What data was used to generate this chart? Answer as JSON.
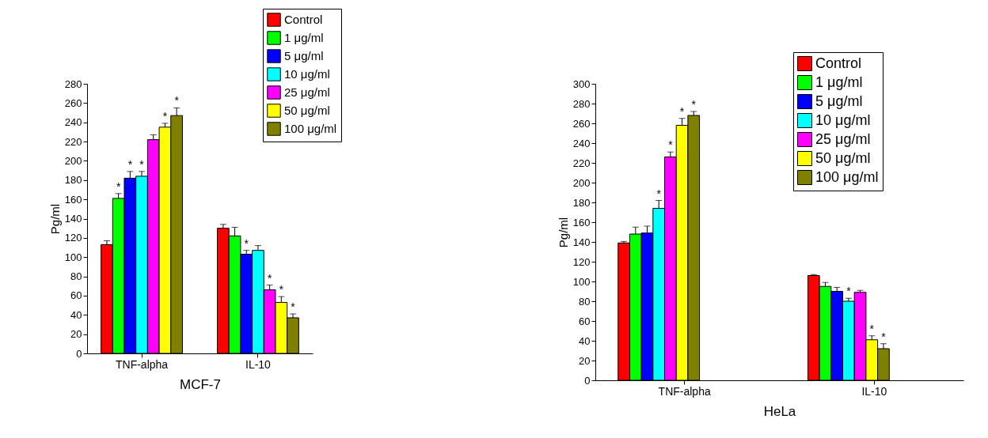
{
  "chart_data": [
    {
      "type": "bar",
      "xlabel": "MCF-7",
      "ylabel": "Pg/ml",
      "categories": [
        "TNF-alpha",
        "IL-10"
      ],
      "ylim": [
        0,
        280
      ],
      "yticks": [
        0,
        20,
        40,
        60,
        80,
        100,
        120,
        140,
        160,
        180,
        200,
        220,
        240,
        260,
        280
      ],
      "grid": false,
      "legend": "top right",
      "series": [
        {
          "name": "Control",
          "color": "#ff0000",
          "values": [
            113,
            130
          ],
          "errors": [
            4,
            4
          ],
          "value_labels": [
            null,
            null
          ]
        },
        {
          "name": "1 μg/ml",
          "color": "#00ff00",
          "values": [
            161,
            122
          ],
          "errors": [
            5,
            9
          ],
          "value_labels": [
            "*",
            null
          ]
        },
        {
          "name": "5 μg/ml",
          "color": "#0000ff",
          "values": [
            182,
            103
          ],
          "errors": [
            7,
            4
          ],
          "value_labels": [
            "*",
            "*"
          ]
        },
        {
          "name": "10 μg/ml",
          "color": "#00ffff",
          "values": [
            184,
            107
          ],
          "errors": [
            5,
            5
          ],
          "value_labels": [
            "*",
            null
          ]
        },
        {
          "name": "25 μg/ml",
          "color": "#ff00ff",
          "values": [
            222,
            66
          ],
          "errors": [
            5,
            5
          ],
          "value_labels": [
            null,
            "*"
          ]
        },
        {
          "name": "50 μg/ml",
          "color": "#ffff00",
          "values": [
            235,
            53
          ],
          "errors": [
            4,
            6
          ],
          "value_labels": [
            "*",
            "*"
          ]
        },
        {
          "name": "100 μg/ml",
          "color": "#808000",
          "values": [
            247,
            37
          ],
          "errors": [
            8,
            4
          ],
          "value_labels": [
            "*",
            "*"
          ]
        }
      ]
    },
    {
      "type": "bar",
      "xlabel": "HeLa",
      "ylabel": "Pg/ml",
      "categories": [
        "TNF-alpha",
        "IL-10"
      ],
      "ylim": [
        0,
        300
      ],
      "yticks": [
        0,
        20,
        40,
        60,
        80,
        100,
        120,
        140,
        160,
        180,
        200,
        220,
        240,
        260,
        280,
        300
      ],
      "grid": false,
      "legend": "top right",
      "series": [
        {
          "name": "Control",
          "color": "#ff0000",
          "values": [
            139,
            106
          ],
          "errors": [
            1.5,
            1
          ],
          "value_labels": [
            null,
            null
          ]
        },
        {
          "name": "1 μg/ml",
          "color": "#00ff00",
          "values": [
            148,
            95
          ],
          "errors": [
            7,
            4
          ],
          "value_labels": [
            null,
            null
          ]
        },
        {
          "name": "5 μg/ml",
          "color": "#0000ff",
          "values": [
            149,
            90
          ],
          "errors": [
            7,
            4
          ],
          "value_labels": [
            null,
            null
          ]
        },
        {
          "name": "10 μg/ml",
          "color": "#00ffff",
          "values": [
            174,
            80
          ],
          "errors": [
            8,
            3
          ],
          "value_labels": [
            "*",
            "*"
          ]
        },
        {
          "name": "25 μg/ml",
          "color": "#ff00ff",
          "values": [
            226,
            89
          ],
          "errors": [
            5,
            2
          ],
          "value_labels": [
            "*",
            null
          ]
        },
        {
          "name": "50 μg/ml",
          "color": "#ffff00",
          "values": [
            258,
            41
          ],
          "errors": [
            7,
            4
          ],
          "value_labels": [
            "*",
            "*"
          ]
        },
        {
          "name": "100 μg/ml",
          "color": "#808000",
          "values": [
            268,
            32
          ],
          "errors": [
            4,
            5
          ],
          "value_labels": [
            "*",
            "*"
          ]
        }
      ]
    }
  ]
}
